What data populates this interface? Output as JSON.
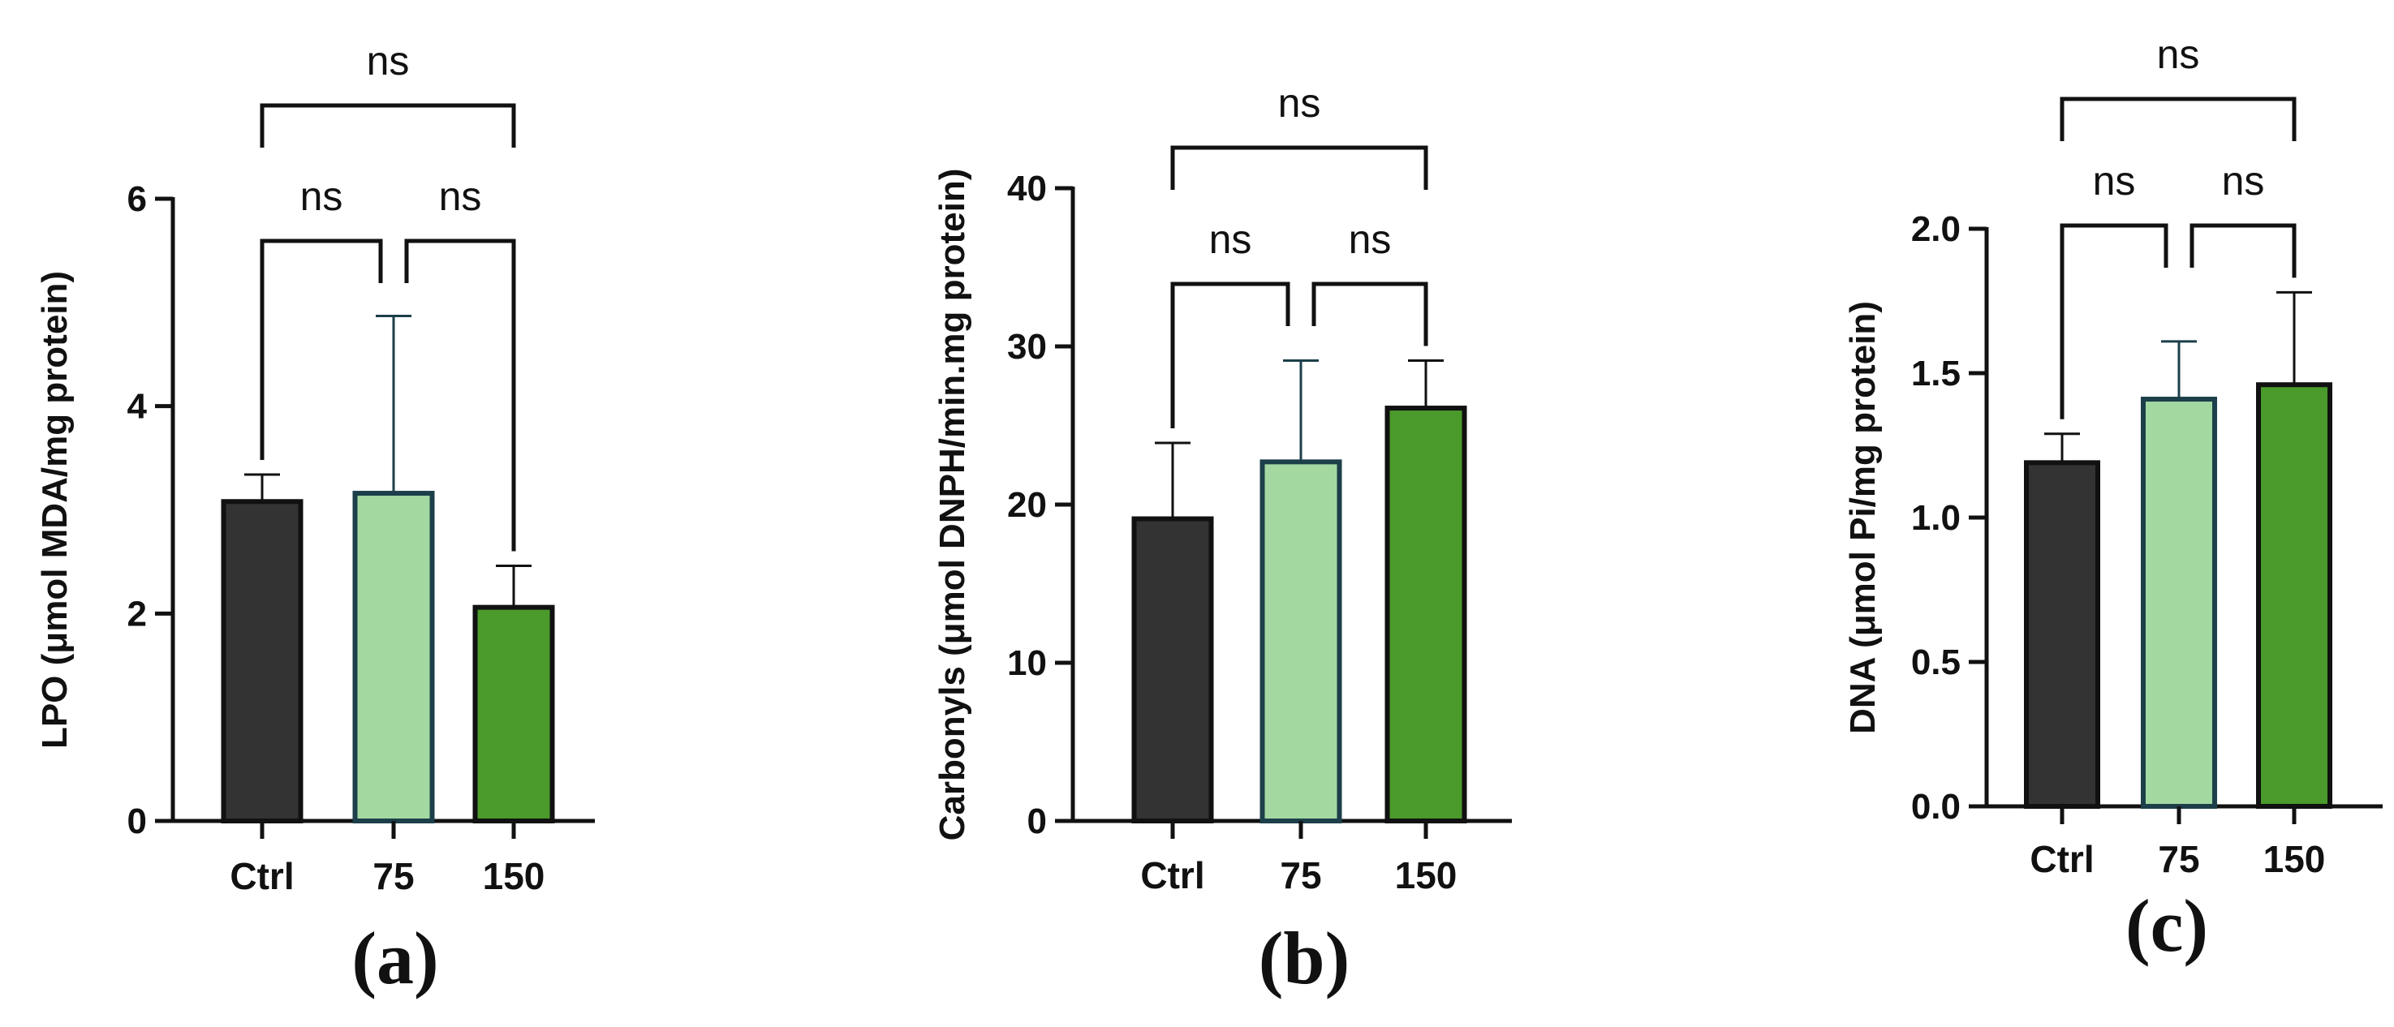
{
  "chart_data": [
    {
      "type": "bar",
      "panel_label": "(a)",
      "categories": [
        "Ctrl",
        "75",
        "150"
      ],
      "values": [
        3.08,
        3.16,
        2.06
      ],
      "errors": [
        0.26,
        1.71,
        0.4
      ],
      "colors": [
        "#333333",
        "#a3d9a1",
        "#4a9a2c"
      ],
      "bar_outlines": [
        "#111111",
        "#1c3f4a",
        "#111111"
      ],
      "ylabel_bold": "LPO",
      "ylabel_rest": " (μmol MDA/mg protein)",
      "ylim": [
        0,
        6
      ],
      "yticks": [
        0,
        2,
        4,
        6
      ],
      "ytick_labels": [
        "0",
        "2",
        "4",
        "6"
      ],
      "comparisons": [
        {
          "from": "Ctrl",
          "to": "75",
          "label": "ns"
        },
        {
          "from": "75",
          "to": "150",
          "label": "ns"
        },
        {
          "from": "Ctrl",
          "to": "150",
          "label": "ns"
        }
      ]
    },
    {
      "type": "bar",
      "panel_label": "(b)",
      "categories": [
        "Ctrl",
        "75",
        "150"
      ],
      "values": [
        19.1,
        22.7,
        26.1
      ],
      "errors": [
        4.8,
        6.4,
        3.0
      ],
      "colors": [
        "#333333",
        "#a3d9a1",
        "#4a9a2c"
      ],
      "bar_outlines": [
        "#111111",
        "#1c3f4a",
        "#111111"
      ],
      "ylabel_bold": "Carbonyls",
      "ylabel_rest": " (μmol DNPH/min.mg protein)",
      "ylim": [
        0,
        40
      ],
      "yticks": [
        0,
        10,
        20,
        30,
        40
      ],
      "ytick_labels": [
        "0",
        "10",
        "20",
        "30",
        "40"
      ],
      "comparisons": [
        {
          "from": "Ctrl",
          "to": "75",
          "label": "ns"
        },
        {
          "from": "75",
          "to": "150",
          "label": "ns"
        },
        {
          "from": "Ctrl",
          "to": "150",
          "label": "ns"
        }
      ]
    },
    {
      "type": "bar",
      "panel_label": "(c)",
      "categories": [
        "Ctrl",
        "75",
        "150"
      ],
      "values": [
        1.19,
        1.41,
        1.46
      ],
      "errors": [
        0.1,
        0.2,
        0.32
      ],
      "colors": [
        "#333333",
        "#a3d9a1",
        "#4a9a2c"
      ],
      "bar_outlines": [
        "#111111",
        "#1c3f4a",
        "#111111"
      ],
      "ylabel_bold": "DNA",
      "ylabel_rest": " (μmol Pi/mg protein)",
      "ylim": [
        0,
        2
      ],
      "yticks": [
        0,
        0.5,
        1,
        1.5,
        2
      ],
      "ytick_labels": [
        "0.0",
        "0.5",
        "1.0",
        "1.5",
        "2.0"
      ],
      "comparisons": [
        {
          "from": "Ctrl",
          "to": "75",
          "label": "ns"
        },
        {
          "from": "75",
          "to": "150",
          "label": "ns"
        },
        {
          "from": "Ctrl",
          "to": "150",
          "label": "ns"
        }
      ]
    }
  ]
}
